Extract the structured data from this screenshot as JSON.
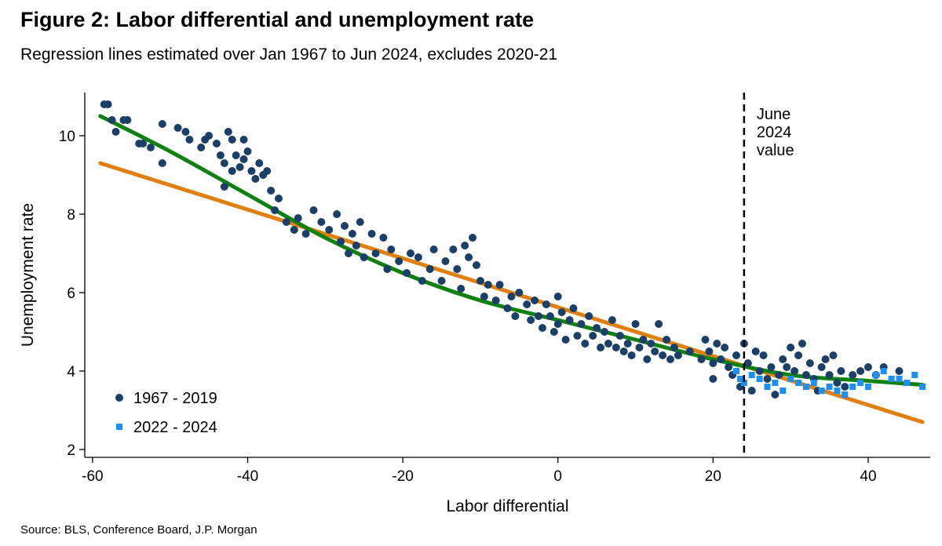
{
  "title": "Figure 2: Labor differential and unemployment rate",
  "subtitle": "Regression lines estimated over Jan 1967 to Jun 2024, excludes 2020-21",
  "source": "Source: BLS, Conference Board, J.P. Morgan",
  "chart_data": {
    "type": "scatter",
    "xlabel": "Labor differential",
    "ylabel": "Unemployment rate",
    "xlim": [
      -61,
      48
    ],
    "ylim": [
      1.8,
      11.1
    ],
    "xticks": [
      -60,
      -40,
      -20,
      0,
      20,
      40
    ],
    "yticks": [
      2,
      4,
      6,
      8,
      10
    ],
    "grid": false,
    "legend_position": "bottom-left",
    "colors": {
      "series_1967": "#1b3f66",
      "series_2022": "#1f8ff0",
      "linear_fit": "#e08010",
      "curve_fit": "#108010",
      "vline": "#000000"
    },
    "vline": {
      "x": 24,
      "label_lines": [
        "June",
        "2024",
        "value"
      ]
    },
    "series": [
      {
        "name": "1967 - 2019",
        "marker": "circle",
        "points": [
          [
            -58.5,
            10.8
          ],
          [
            -58,
            10.8
          ],
          [
            -57.5,
            10.4
          ],
          [
            -57,
            10.1
          ],
          [
            -56,
            10.4
          ],
          [
            -55.5,
            10.4
          ],
          [
            -54,
            9.8
          ],
          [
            -53.5,
            9.8
          ],
          [
            -52.5,
            9.7
          ],
          [
            -51,
            10.3
          ],
          [
            -51,
            9.3
          ],
          [
            -49,
            10.2
          ],
          [
            -48,
            10.1
          ],
          [
            -47.5,
            9.9
          ],
          [
            -46,
            9.7
          ],
          [
            -45.5,
            9.9
          ],
          [
            -45,
            10.0
          ],
          [
            -44,
            9.8
          ],
          [
            -43.5,
            9.5
          ],
          [
            -43,
            9.3
          ],
          [
            -43,
            8.7
          ],
          [
            -42.5,
            10.1
          ],
          [
            -42,
            9.9
          ],
          [
            -42,
            9.1
          ],
          [
            -41.5,
            9.5
          ],
          [
            -41,
            9.2
          ],
          [
            -40.5,
            9.9
          ],
          [
            -40.5,
            9.4
          ],
          [
            -40,
            9.6
          ],
          [
            -39.5,
            9.1
          ],
          [
            -39,
            8.9
          ],
          [
            -38.5,
            9.3
          ],
          [
            -38,
            9.0
          ],
          [
            -37.5,
            9.1
          ],
          [
            -37,
            8.6
          ],
          [
            -36.5,
            8.1
          ],
          [
            -36,
            8.4
          ],
          [
            -35,
            7.8
          ],
          [
            -34,
            7.6
          ],
          [
            -33.5,
            7.9
          ],
          [
            -32.5,
            7.5
          ],
          [
            -31.5,
            8.1
          ],
          [
            -30.5,
            7.8
          ],
          [
            -29.5,
            7.6
          ],
          [
            -28.5,
            8.0
          ],
          [
            -28,
            7.3
          ],
          [
            -27.5,
            7.7
          ],
          [
            -27,
            7.0
          ],
          [
            -26.5,
            7.5
          ],
          [
            -26,
            7.2
          ],
          [
            -25.5,
            7.8
          ],
          [
            -25,
            6.9
          ],
          [
            -24,
            7.5
          ],
          [
            -23.5,
            7.0
          ],
          [
            -22.5,
            7.4
          ],
          [
            -22,
            6.6
          ],
          [
            -21.5,
            7.1
          ],
          [
            -20.5,
            6.8
          ],
          [
            -19.5,
            6.5
          ],
          [
            -19,
            7.0
          ],
          [
            -18,
            6.9
          ],
          [
            -17.5,
            6.3
          ],
          [
            -16.5,
            6.6
          ],
          [
            -16,
            7.1
          ],
          [
            -15,
            6.3
          ],
          [
            -14.5,
            6.8
          ],
          [
            -13.5,
            7.1
          ],
          [
            -13,
            6.6
          ],
          [
            -12.5,
            6.1
          ],
          [
            -12,
            7.2
          ],
          [
            -11.5,
            6.9
          ],
          [
            -11,
            7.4
          ],
          [
            -10.5,
            6.7
          ],
          [
            -10,
            6.3
          ],
          [
            -9.5,
            5.9
          ],
          [
            -9,
            6.2
          ],
          [
            -8,
            5.8
          ],
          [
            -7.5,
            6.2
          ],
          [
            -6.5,
            5.6
          ],
          [
            -6,
            5.9
          ],
          [
            -5.5,
            5.4
          ],
          [
            -5,
            6.0
          ],
          [
            -4,
            5.7
          ],
          [
            -3.5,
            5.3
          ],
          [
            -3,
            5.8
          ],
          [
            -2.5,
            5.4
          ],
          [
            -2,
            5.1
          ],
          [
            -1.5,
            5.7
          ],
          [
            -1,
            5.4
          ],
          [
            -0.5,
            5.0
          ],
          [
            0,
            5.9
          ],
          [
            0,
            5.2
          ],
          [
            0.5,
            5.5
          ],
          [
            1,
            4.8
          ],
          [
            1.5,
            5.3
          ],
          [
            2,
            5.6
          ],
          [
            2.5,
            4.9
          ],
          [
            3,
            5.2
          ],
          [
            3.5,
            4.7
          ],
          [
            4,
            5.4
          ],
          [
            4.5,
            4.9
          ],
          [
            5,
            5.1
          ],
          [
            5.5,
            4.6
          ],
          [
            6,
            5.0
          ],
          [
            6.5,
            4.7
          ],
          [
            7,
            5.3
          ],
          [
            7.5,
            4.6
          ],
          [
            8,
            4.9
          ],
          [
            8.5,
            4.5
          ],
          [
            9,
            4.7
          ],
          [
            9.5,
            4.4
          ],
          [
            10,
            5.2
          ],
          [
            10.5,
            4.6
          ],
          [
            11,
            4.8
          ],
          [
            11.5,
            4.3
          ],
          [
            12,
            4.7
          ],
          [
            12.5,
            4.5
          ],
          [
            13,
            5.2
          ],
          [
            13.5,
            4.4
          ],
          [
            14,
            4.8
          ],
          [
            14.5,
            4.3
          ],
          [
            15,
            4.6
          ],
          [
            15.5,
            4.4
          ],
          [
            17,
            4.5
          ],
          [
            18.5,
            4.3
          ],
          [
            19,
            4.8
          ],
          [
            19.5,
            4.5
          ],
          [
            20,
            4.2
          ],
          [
            20,
            3.8
          ],
          [
            20.5,
            4.7
          ],
          [
            21,
            4.3
          ],
          [
            21.5,
            4.6
          ],
          [
            22,
            4.1
          ],
          [
            22.5,
            3.9
          ],
          [
            23,
            4.4
          ],
          [
            23.5,
            3.6
          ],
          [
            24,
            4.7
          ],
          [
            24.5,
            4.2
          ],
          [
            25,
            3.5
          ],
          [
            25.5,
            4.5
          ],
          [
            26,
            4.0
          ],
          [
            26.5,
            4.4
          ],
          [
            27,
            3.8
          ],
          [
            27.5,
            4.1
          ],
          [
            28,
            3.4
          ],
          [
            28.5,
            3.9
          ],
          [
            29,
            4.3
          ],
          [
            29.5,
            4.1
          ],
          [
            30,
            4.6
          ],
          [
            30.5,
            4.0
          ],
          [
            31,
            4.4
          ],
          [
            31.5,
            4.7
          ],
          [
            32,
            3.9
          ],
          [
            32.5,
            4.2
          ],
          [
            33,
            3.8
          ],
          [
            33.5,
            3.5
          ],
          [
            34,
            4.1
          ],
          [
            34.5,
            4.3
          ],
          [
            35,
            3.9
          ],
          [
            35.5,
            4.4
          ],
          [
            36,
            3.7
          ],
          [
            36.5,
            4.0
          ],
          [
            37,
            3.6
          ],
          [
            38,
            3.9
          ],
          [
            39,
            4.0
          ],
          [
            40,
            4.1
          ],
          [
            41,
            3.9
          ],
          [
            42,
            4.1
          ],
          [
            44,
            4.0
          ]
        ]
      },
      {
        "name": "2022 - 2024",
        "marker": "square",
        "points": [
          [
            23,
            4.0
          ],
          [
            23.5,
            3.8
          ],
          [
            24,
            3.7
          ],
          [
            25,
            3.9
          ],
          [
            26,
            3.8
          ],
          [
            27,
            3.6
          ],
          [
            28,
            3.7
          ],
          [
            29,
            3.5
          ],
          [
            30,
            3.8
          ],
          [
            31,
            3.7
          ],
          [
            32,
            3.6
          ],
          [
            33,
            3.7
          ],
          [
            34,
            3.5
          ],
          [
            35,
            3.6
          ],
          [
            36,
            3.5
          ],
          [
            37,
            3.4
          ],
          [
            38,
            3.6
          ],
          [
            39,
            3.7
          ],
          [
            40,
            3.6
          ],
          [
            41,
            3.9
          ],
          [
            42,
            4.0
          ],
          [
            43,
            3.8
          ],
          [
            44,
            3.8
          ],
          [
            45,
            3.7
          ],
          [
            46,
            3.9
          ],
          [
            47,
            3.6
          ]
        ]
      }
    ],
    "fits": [
      {
        "type": "linear",
        "points": [
          [
            -59,
            9.3
          ],
          [
            47,
            2.7
          ]
        ]
      },
      {
        "type": "curve",
        "points": [
          [
            -59,
            10.5
          ],
          [
            -50,
            9.6
          ],
          [
            -40,
            8.5
          ],
          [
            -30,
            7.4
          ],
          [
            -20,
            6.5
          ],
          [
            -10,
            5.8
          ],
          [
            0,
            5.3
          ],
          [
            10,
            4.8
          ],
          [
            20,
            4.3
          ],
          [
            30,
            3.9
          ],
          [
            40,
            3.75
          ],
          [
            47,
            3.65
          ]
        ]
      }
    ]
  }
}
